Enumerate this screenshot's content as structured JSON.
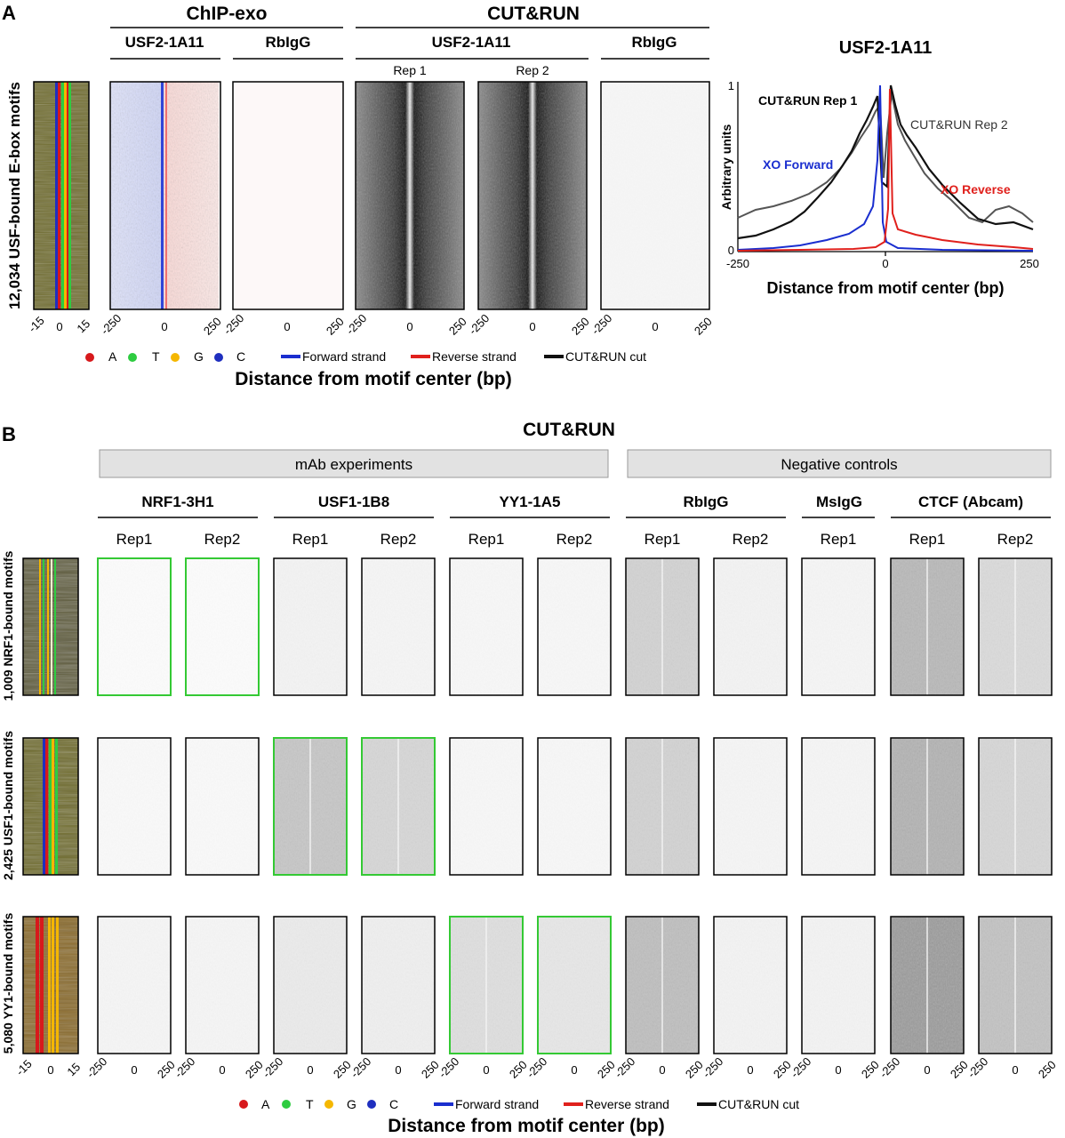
{
  "panelA": {
    "letter": "A",
    "group_chipexo": "ChIP-exo",
    "group_cutrun": "CUT&RUN",
    "yaxis_label": "12,034 USF-bound E-box motifs",
    "columns": [
      {
        "title": "USF2-1A11",
        "rep": "",
        "style": "exo-usf"
      },
      {
        "title": "RbIgG",
        "rep": "",
        "style": "exo-igg"
      },
      {
        "title": "USF2-1A11",
        "rep": "Rep 1",
        "style": "cr-usf"
      },
      {
        "title": "",
        "rep": "Rep 2",
        "style": "cr-usf"
      },
      {
        "title": "RbIgG",
        "rep": "",
        "style": "cr-igg"
      }
    ],
    "seq_ticks": [
      "-15",
      "0",
      "15"
    ],
    "heat_ticks": [
      "-250",
      "0",
      "250"
    ],
    "xlabel": "Distance from motif center (bp)",
    "legend": {
      "bases": [
        {
          "label": "A",
          "color": "#d7191c"
        },
        {
          "label": "T",
          "color": "#2ecc40"
        },
        {
          "label": "G",
          "color": "#f5b700"
        },
        {
          "label": "C",
          "color": "#1f2fbf"
        }
      ],
      "lines": [
        {
          "label": "Forward strand",
          "color": "#1a2ecf"
        },
        {
          "label": "Reverse strand",
          "color": "#e0201c"
        },
        {
          "label": "CUT&RUN cut",
          "color": "#111111"
        }
      ]
    },
    "composite": {
      "title": "USF2-1A11",
      "ylabel": "Arbitrary units",
      "xlabel": "Distance from motif center (bp)",
      "yticks": [
        "1",
        "0"
      ],
      "xticks": [
        "-250",
        "0",
        "250"
      ],
      "labels": {
        "rep1": "CUT&RUN Rep 1",
        "rep2": "CUT&RUN Rep 2",
        "fwd": "XO Forward",
        "rev": "XO Reverse"
      }
    }
  },
  "panelB": {
    "letter": "B",
    "title": "CUT&RUN",
    "group_mab": "mAb experiments",
    "group_neg": "Negative controls",
    "antibodies": [
      "NRF1-3H1",
      "USF1-1B8",
      "YY1-1A5",
      "RbIgG",
      "MsIgG",
      "CTCF (Abcam)"
    ],
    "reps": [
      "Rep1",
      "Rep2",
      "Rep1",
      "Rep2",
      "Rep1",
      "Rep2",
      "Rep1",
      "Rep2",
      "Rep1",
      "Rep1",
      "Rep2"
    ],
    "rows": [
      {
        "label": "1,009 NRF1-bound motifs",
        "dens": [
          0.02,
          0.02,
          0.06,
          0.05,
          0.04,
          0.04,
          0.22,
          0.06,
          0.05,
          0.35,
          0.18
        ],
        "green": [
          0,
          1
        ]
      },
      {
        "label": "2,425 USF1-bound motifs",
        "dens": [
          0.03,
          0.03,
          0.28,
          0.2,
          0.04,
          0.04,
          0.22,
          0.05,
          0.05,
          0.38,
          0.2
        ],
        "green": [
          2,
          3
        ]
      },
      {
        "label": "5,080 YY1-bound motifs",
        "dens": [
          0.05,
          0.05,
          0.1,
          0.08,
          0.16,
          0.12,
          0.32,
          0.06,
          0.06,
          0.5,
          0.3
        ],
        "green": [
          4,
          5
        ]
      }
    ],
    "seq_ticks": [
      "-15",
      "0",
      "15"
    ],
    "heat_ticks": [
      "-250",
      "0",
      "250"
    ],
    "xlabel": "Distance from motif center (bp)",
    "legend": {
      "bases": [
        {
          "label": "A",
          "color": "#d7191c"
        },
        {
          "label": "T",
          "color": "#2ecc40"
        },
        {
          "label": "G",
          "color": "#f5b700"
        },
        {
          "label": "C",
          "color": "#1f2fbf"
        }
      ],
      "lines": [
        {
          "label": "Forward strand",
          "color": "#1a2ecf"
        },
        {
          "label": "Reverse strand",
          "color": "#e0201c"
        },
        {
          "label": "CUT&RUN cut",
          "color": "#111111"
        }
      ]
    }
  }
}
